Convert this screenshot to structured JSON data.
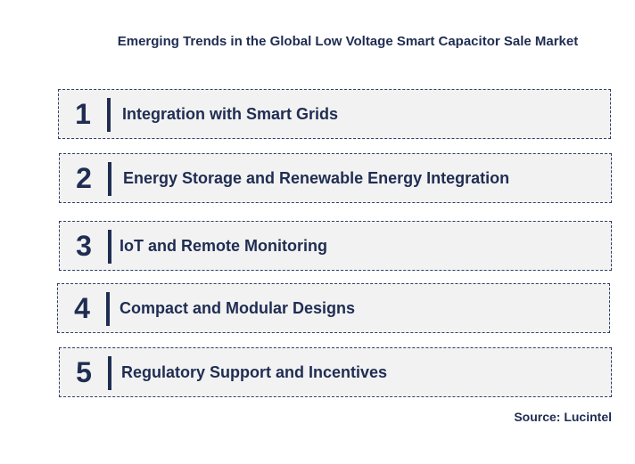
{
  "title": "Emerging Trends in the Global Low Voltage Smart Capacitor Sale Market",
  "trends": [
    {
      "number": "1",
      "label": "Integration with Smart Grids"
    },
    {
      "number": "2",
      "label": "Energy Storage and Renewable Energy Integration"
    },
    {
      "number": "3",
      "label": "IoT and Remote Monitoring"
    },
    {
      "number": "4",
      "label": "Compact and Modular Designs"
    },
    {
      "number": "5",
      "label": "Regulatory Support and Incentives"
    }
  ],
  "source": "Source: Lucintel",
  "colors": {
    "text": "#1f2d52",
    "row_background": "#f2f2f2",
    "border": "#2f3f6a"
  }
}
